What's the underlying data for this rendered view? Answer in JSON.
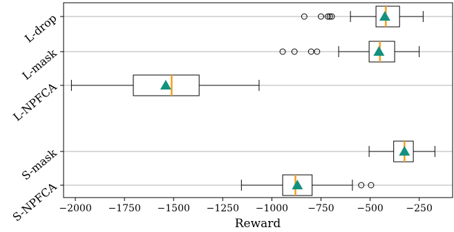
{
  "chart_data": {
    "type": "boxplot",
    "orientation": "horizontal",
    "xlabel": "Reward",
    "ylabel": "",
    "xlim": [
      -2060,
      -80
    ],
    "xticks": [
      -2000,
      -1750,
      -1500,
      -1250,
      -1000,
      -750,
      -500,
      -250
    ],
    "xtick_labels": [
      "−2000",
      "−1750",
      "−1500",
      "−1250",
      "−1000",
      "−750",
      "−500",
      "−250"
    ],
    "grid": "y-lines",
    "colors": {
      "median": "#f0a01e",
      "mean_marker": "#13917f",
      "box": "#000000",
      "grid": "#b0b0b0"
    },
    "categories": [
      {
        "label": "L-drop",
        "whisker_low": -600,
        "q1": -470,
        "median": -420,
        "q3": -350,
        "whisker_high": -230,
        "mean": -425,
        "outliers": [
          -835,
          -750,
          -715,
          -705,
          -695
        ]
      },
      {
        "label": "L-mask",
        "whisker_low": -660,
        "q1": -505,
        "median": -450,
        "q3": -375,
        "whisker_high": -250,
        "mean": -455,
        "outliers": [
          -945,
          -885,
          -800,
          -770
        ]
      },
      {
        "label": "L-NPFCA",
        "whisker_low": -2020,
        "q1": -1705,
        "median": -1510,
        "q3": -1370,
        "whisker_high": -1065,
        "mean": -1540,
        "outliers": []
      },
      {
        "label": "S-mask",
        "whisker_low": -505,
        "q1": -380,
        "median": -325,
        "q3": -280,
        "whisker_high": -170,
        "mean": -325,
        "outliers": []
      },
      {
        "label": "S-NPFCA",
        "whisker_low": -1155,
        "q1": -945,
        "median": -880,
        "q3": -795,
        "whisker_high": -590,
        "mean": -870,
        "outliers": [
          -545,
          -495
        ]
      }
    ]
  }
}
